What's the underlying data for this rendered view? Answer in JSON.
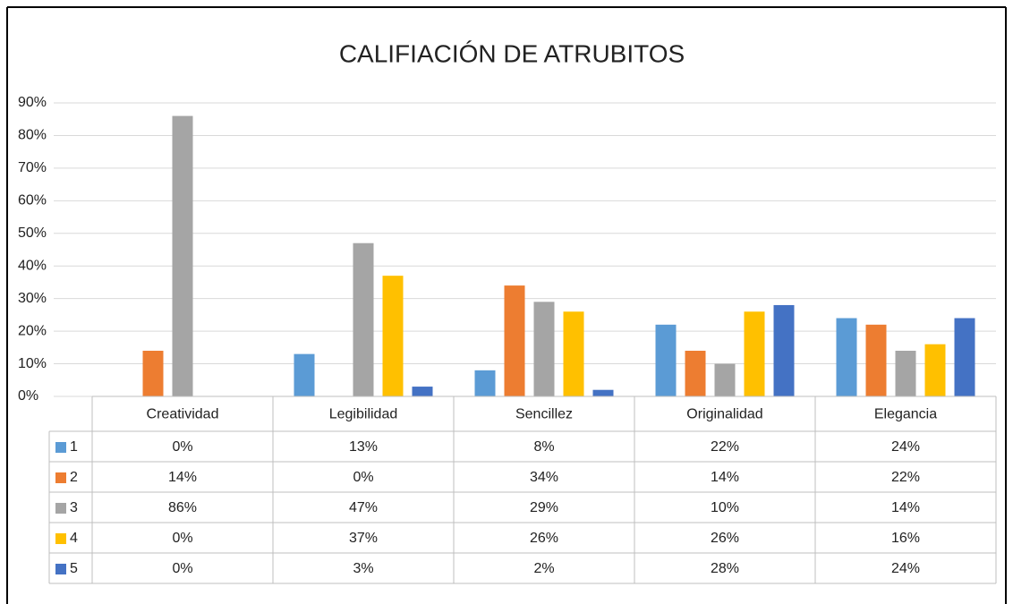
{
  "chart_data": {
    "type": "bar",
    "title": "CALIFIACIÓN DE ATRUBITOS",
    "categories": [
      "Creatividad",
      "Legibilidad",
      "Sencillez",
      "Originalidad",
      "Elegancia"
    ],
    "series": [
      {
        "name": "1",
        "color": "#5b9bd5",
        "values": [
          0,
          13,
          8,
          22,
          24
        ],
        "value_labels": [
          "0%",
          "13%",
          "8%",
          "22%",
          "24%"
        ]
      },
      {
        "name": "2",
        "color": "#ed7d31",
        "values": [
          14,
          0,
          34,
          14,
          22
        ],
        "value_labels": [
          "14%",
          "0%",
          "34%",
          "14%",
          "22%"
        ]
      },
      {
        "name": "3",
        "color": "#a5a5a5",
        "values": [
          86,
          47,
          29,
          10,
          14
        ],
        "value_labels": [
          "86%",
          "47%",
          "29%",
          "10%",
          "14%"
        ]
      },
      {
        "name": "4",
        "color": "#ffc000",
        "values": [
          0,
          37,
          26,
          26,
          16
        ],
        "value_labels": [
          "0%",
          "37%",
          "26%",
          "26%",
          "16%"
        ]
      },
      {
        "name": "5",
        "color": "#4472c4",
        "values": [
          0,
          3,
          2,
          28,
          24
        ],
        "value_labels": [
          "0%",
          "3%",
          "2%",
          "28%",
          "24%"
        ]
      }
    ],
    "ylim": [
      0,
      90
    ],
    "yticks": [
      {
        "value": 0,
        "label": "0%"
      },
      {
        "value": 10,
        "label": "10%"
      },
      {
        "value": 20,
        "label": "20%"
      },
      {
        "value": 30,
        "label": "30%"
      },
      {
        "value": 40,
        "label": "40%"
      },
      {
        "value": 50,
        "label": "50%"
      },
      {
        "value": 60,
        "label": "60%"
      },
      {
        "value": 70,
        "label": "70%"
      },
      {
        "value": 80,
        "label": "80%"
      },
      {
        "value": 90,
        "label": "90%"
      }
    ],
    "grid": true
  }
}
